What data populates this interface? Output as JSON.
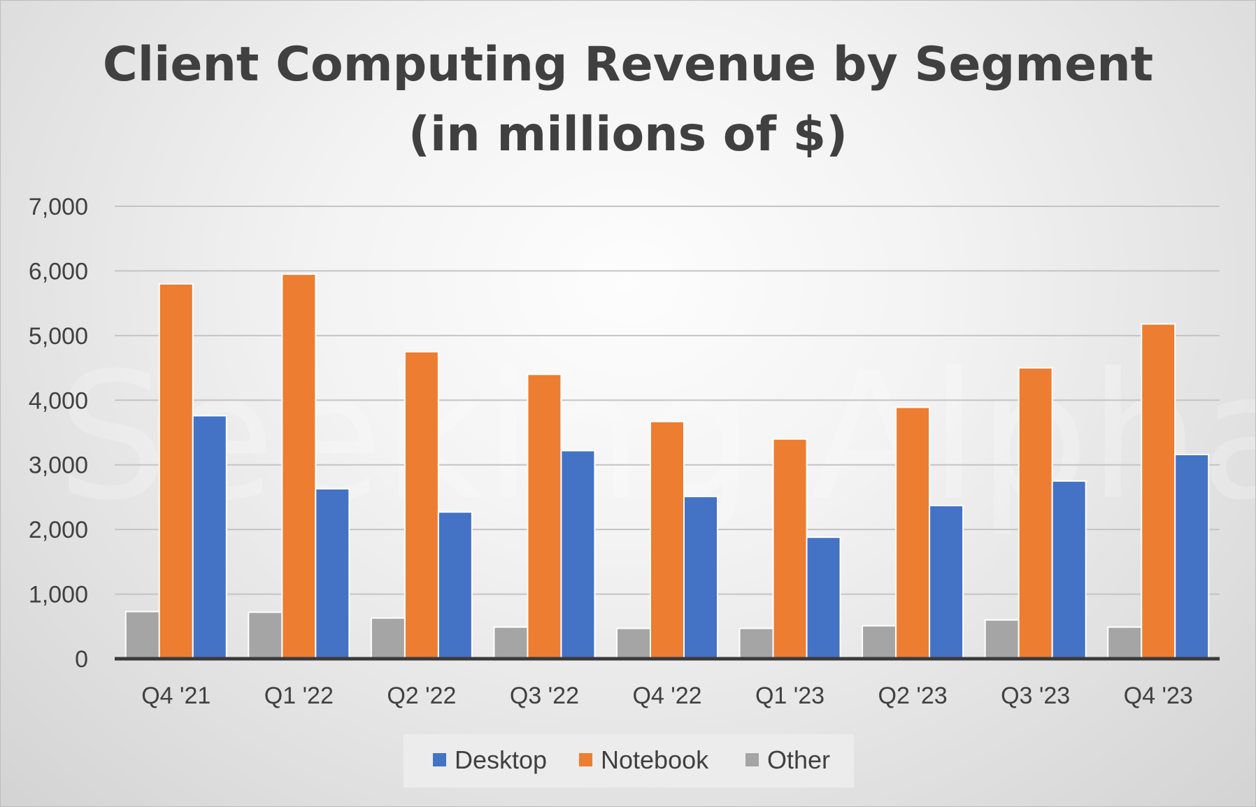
{
  "chart_data": {
    "type": "bar",
    "title": "Client Computing Revenue by Segment",
    "subtitle": "(in millions of $)",
    "xlabel": "",
    "ylabel": "",
    "categories": [
      "Q4 '21",
      "Q1 '22",
      "Q2 '22",
      "Q3 '22",
      "Q4 '22",
      "Q1 '23",
      "Q2 '23",
      "Q3 '23",
      "Q4 '23"
    ],
    "series": [
      {
        "name": "Other",
        "color": "#a5a5a5",
        "values": [
          730,
          720,
          630,
          490,
          470,
          470,
          510,
          600,
          490
        ]
      },
      {
        "name": "Notebook",
        "color": "#ed7d31",
        "values": [
          5800,
          5950,
          4750,
          4400,
          3670,
          3400,
          3890,
          4500,
          5180
        ]
      },
      {
        "name": "Desktop",
        "color": "#4472c4",
        "values": [
          3760,
          2630,
          2270,
          3220,
          2510,
          1880,
          2370,
          2750,
          3160
        ]
      }
    ],
    "ylim": [
      0,
      7000
    ],
    "yticks": [
      "0",
      "1,000",
      "2,000",
      "3,000",
      "4,000",
      "5,000",
      "6,000",
      "7,000"
    ],
    "grid": true,
    "legend": {
      "position": "bottom",
      "items": [
        {
          "name": "Desktop",
          "color": "#4472c4"
        },
        {
          "name": "Notebook",
          "color": "#ed7d31"
        },
        {
          "name": "Other",
          "color": "#a5a5a5"
        }
      ]
    },
    "watermark": "Seeking Alpha"
  }
}
